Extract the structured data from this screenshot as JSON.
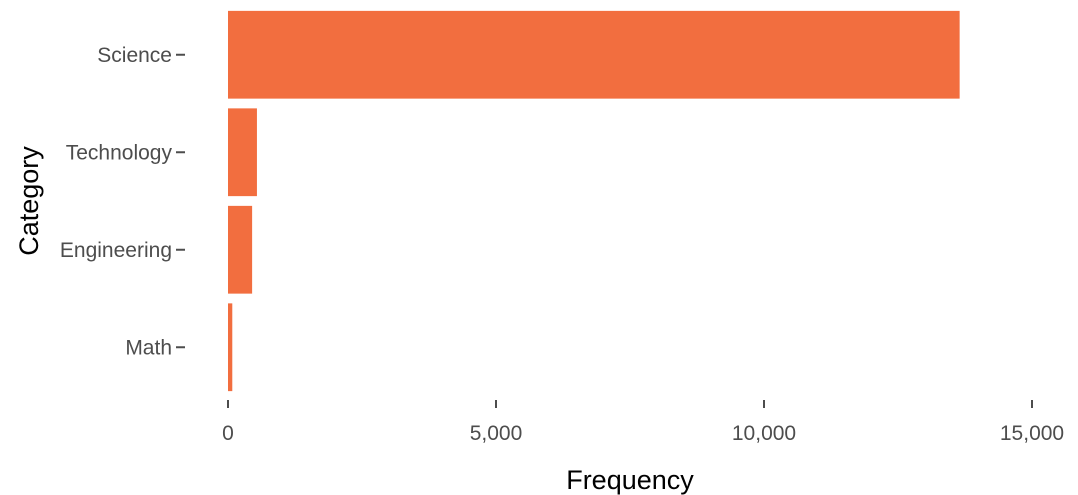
{
  "chart_data": {
    "type": "bar",
    "orientation": "horizontal",
    "categories": [
      "Science",
      "Technology",
      "Engineering",
      "Math"
    ],
    "values": [
      13650,
      540,
      450,
      80
    ],
    "xlabel": "Frequency",
    "ylabel": "Category",
    "xlim": [
      0,
      15000
    ],
    "xticks": [
      0,
      5000,
      10000,
      15000
    ],
    "xtick_labels": [
      "0",
      "5,000",
      "10,000",
      "15,000"
    ],
    "grid": false,
    "legend": "none",
    "bar_color": "#f26e3f",
    "background": "#ffffff"
  }
}
